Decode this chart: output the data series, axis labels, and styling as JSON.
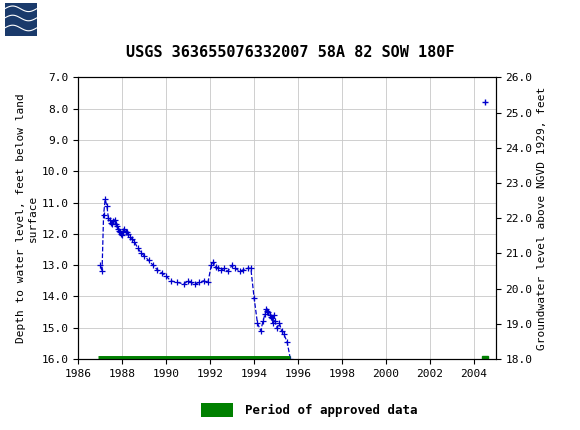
{
  "title": "USGS 363655076332007 58A 82 SOW 180F",
  "ylabel_left": "Depth to water level, feet below land\nsurface",
  "ylabel_right": "Groundwater level above NGVD 1929, feet",
  "ylim_left": [
    16.0,
    7.0
  ],
  "ylim_right": [
    18.0,
    26.0
  ],
  "xlim": [
    1986,
    2005
  ],
  "xticks": [
    1986,
    1988,
    1990,
    1992,
    1994,
    1996,
    1998,
    2000,
    2002,
    2004
  ],
  "yticks_left": [
    7.0,
    8.0,
    9.0,
    10.0,
    11.0,
    12.0,
    13.0,
    14.0,
    15.0,
    16.0
  ],
  "yticks_right": [
    26.0,
    25.0,
    24.0,
    23.0,
    22.0,
    21.0,
    20.0,
    19.0,
    18.0
  ],
  "header_color": "#1b6b3a",
  "line_color": "#0000cc",
  "approved_color": "#008000",
  "background_color": "#ffffff",
  "grid_color": "#c8c8c8",
  "data_x": [
    1987.0,
    1987.08,
    1987.15,
    1987.22,
    1987.3,
    1987.37,
    1987.44,
    1987.5,
    1987.55,
    1987.6,
    1987.65,
    1987.7,
    1987.75,
    1987.8,
    1987.85,
    1987.9,
    1987.95,
    1988.0,
    1988.05,
    1988.1,
    1988.15,
    1988.2,
    1988.25,
    1988.35,
    1988.45,
    1988.55,
    1988.7,
    1988.85,
    1989.0,
    1989.2,
    1989.4,
    1989.6,
    1989.8,
    1990.0,
    1990.2,
    1990.5,
    1990.8,
    1991.0,
    1991.15,
    1991.3,
    1991.5,
    1991.7,
    1991.9,
    1992.05,
    1992.15,
    1992.25,
    1992.35,
    1992.5,
    1992.65,
    1992.8,
    1993.0,
    1993.15,
    1993.35,
    1993.5,
    1993.7,
    1993.85,
    1994.0,
    1994.15,
    1994.3,
    1994.4,
    1994.5,
    1994.55,
    1994.6,
    1994.65,
    1994.7,
    1994.75,
    1994.8,
    1994.85,
    1994.9,
    1994.95,
    1995.05,
    1995.15,
    1995.25,
    1995.35,
    1995.5,
    1995.65,
    2004.5
  ],
  "data_y": [
    13.0,
    13.2,
    11.4,
    10.9,
    11.1,
    11.5,
    11.55,
    11.65,
    11.7,
    11.6,
    11.55,
    11.7,
    11.75,
    11.85,
    11.9,
    11.95,
    12.0,
    12.05,
    11.9,
    11.85,
    11.95,
    11.95,
    12.0,
    12.1,
    12.15,
    12.25,
    12.45,
    12.6,
    12.7,
    12.85,
    13.0,
    13.15,
    13.25,
    13.35,
    13.5,
    13.55,
    13.6,
    13.5,
    13.55,
    13.6,
    13.55,
    13.5,
    13.55,
    13.0,
    12.9,
    13.05,
    13.1,
    13.15,
    13.1,
    13.2,
    13.0,
    13.1,
    13.2,
    13.15,
    13.1,
    13.1,
    14.05,
    14.85,
    15.1,
    14.8,
    14.55,
    14.4,
    14.45,
    14.5,
    14.6,
    14.65,
    14.7,
    14.85,
    14.6,
    14.8,
    15.0,
    14.85,
    15.1,
    15.2,
    15.45,
    16.0,
    7.8
  ],
  "approved_xstart": 1986.88,
  "approved_xend": 1995.65,
  "approved_y": 16.0,
  "approved_x2": 2004.5,
  "approved_y2": 16.0,
  "legend_text": "Period of approved data"
}
